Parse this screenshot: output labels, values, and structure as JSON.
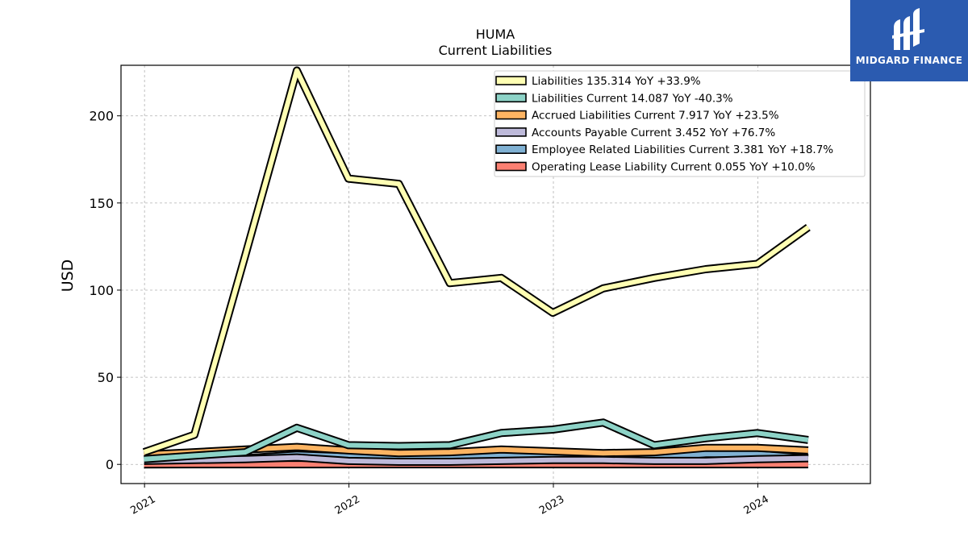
{
  "logo": {
    "text": "MIDGARD FINANCE"
  },
  "colors": {
    "liabilities": "#ffffb3",
    "liabilities_current": "#8dd3c7",
    "accrued": "#fdb462",
    "accounts_payable": "#bebada",
    "employee": "#80b1d3",
    "lease": "#fb8072"
  },
  "chart_data": {
    "type": "line",
    "title": "HUMA",
    "subtitle": "Current  Liabilities",
    "ylabel": "USD",
    "xlabel": "",
    "ylim": [
      -11,
      229
    ],
    "xlim": [
      "2020-11-20",
      "2024-07-20"
    ],
    "yticks": [
      0,
      50,
      100,
      150,
      200
    ],
    "xticks": [
      "2021",
      "2022",
      "2023",
      "2024"
    ],
    "grid": true,
    "legend_position": "top-right",
    "x": [
      "2020-12-31",
      "2021-03-31",
      "2021-06-30",
      "2021-09-30",
      "2021-12-31",
      "2022-03-31",
      "2022-06-30",
      "2022-09-30",
      "2022-12-31",
      "2023-03-31",
      "2023-06-30",
      "2023-09-30",
      "2023-12-31",
      "2024-03-31"
    ],
    "series": [
      {
        "name": "Liabilities  135.314 YoY +33.9%",
        "color_key": "liabilities",
        "values": [
          7,
          17,
          120,
          226,
          164,
          161,
          104,
          107,
          87,
          101,
          107,
          112,
          115,
          136
        ]
      },
      {
        "name": "Liabilities Current  14.087 YoY -40.3%",
        "color_key": "liabilities_current",
        "values": [
          3,
          5,
          7,
          21,
          11,
          10.5,
          11,
          18,
          20,
          24,
          11,
          15,
          18,
          14
        ]
      },
      {
        "name": "Accrued Liabilities Current  7.917 YoY +23.5%",
        "color_key": "accrued",
        "values": [
          5.5,
          7,
          8.5,
          10,
          8,
          6.5,
          7,
          8.5,
          7.5,
          6.5,
          7,
          9.5,
          9.5,
          8
        ]
      },
      {
        "name": "Accounts Payable Current  3.452 YoY +76.7%",
        "color_key": "accounts_payable",
        "values": [
          2,
          2.5,
          3,
          4,
          2,
          1.5,
          1.5,
          2,
          2.5,
          2.5,
          2,
          2,
          3,
          3.5
        ]
      },
      {
        "name": "Employee Related Liabilities Current  3.381 YoY +18.7%",
        "color_key": "employee",
        "values": [
          2.5,
          3,
          3.5,
          5.5,
          4.5,
          3.5,
          4,
          5,
          4.5,
          3,
          3.5,
          6,
          6,
          3.5
        ]
      },
      {
        "name": "Operating Lease Liability Current  0.055 YoY +10.0%",
        "color_key": "lease",
        "values": [
          0,
          0.05,
          0.05,
          0.05,
          0.05,
          0.05,
          0.05,
          0.05,
          0.05,
          0.05,
          0.05,
          0.05,
          0.05,
          0.05
        ]
      }
    ]
  }
}
